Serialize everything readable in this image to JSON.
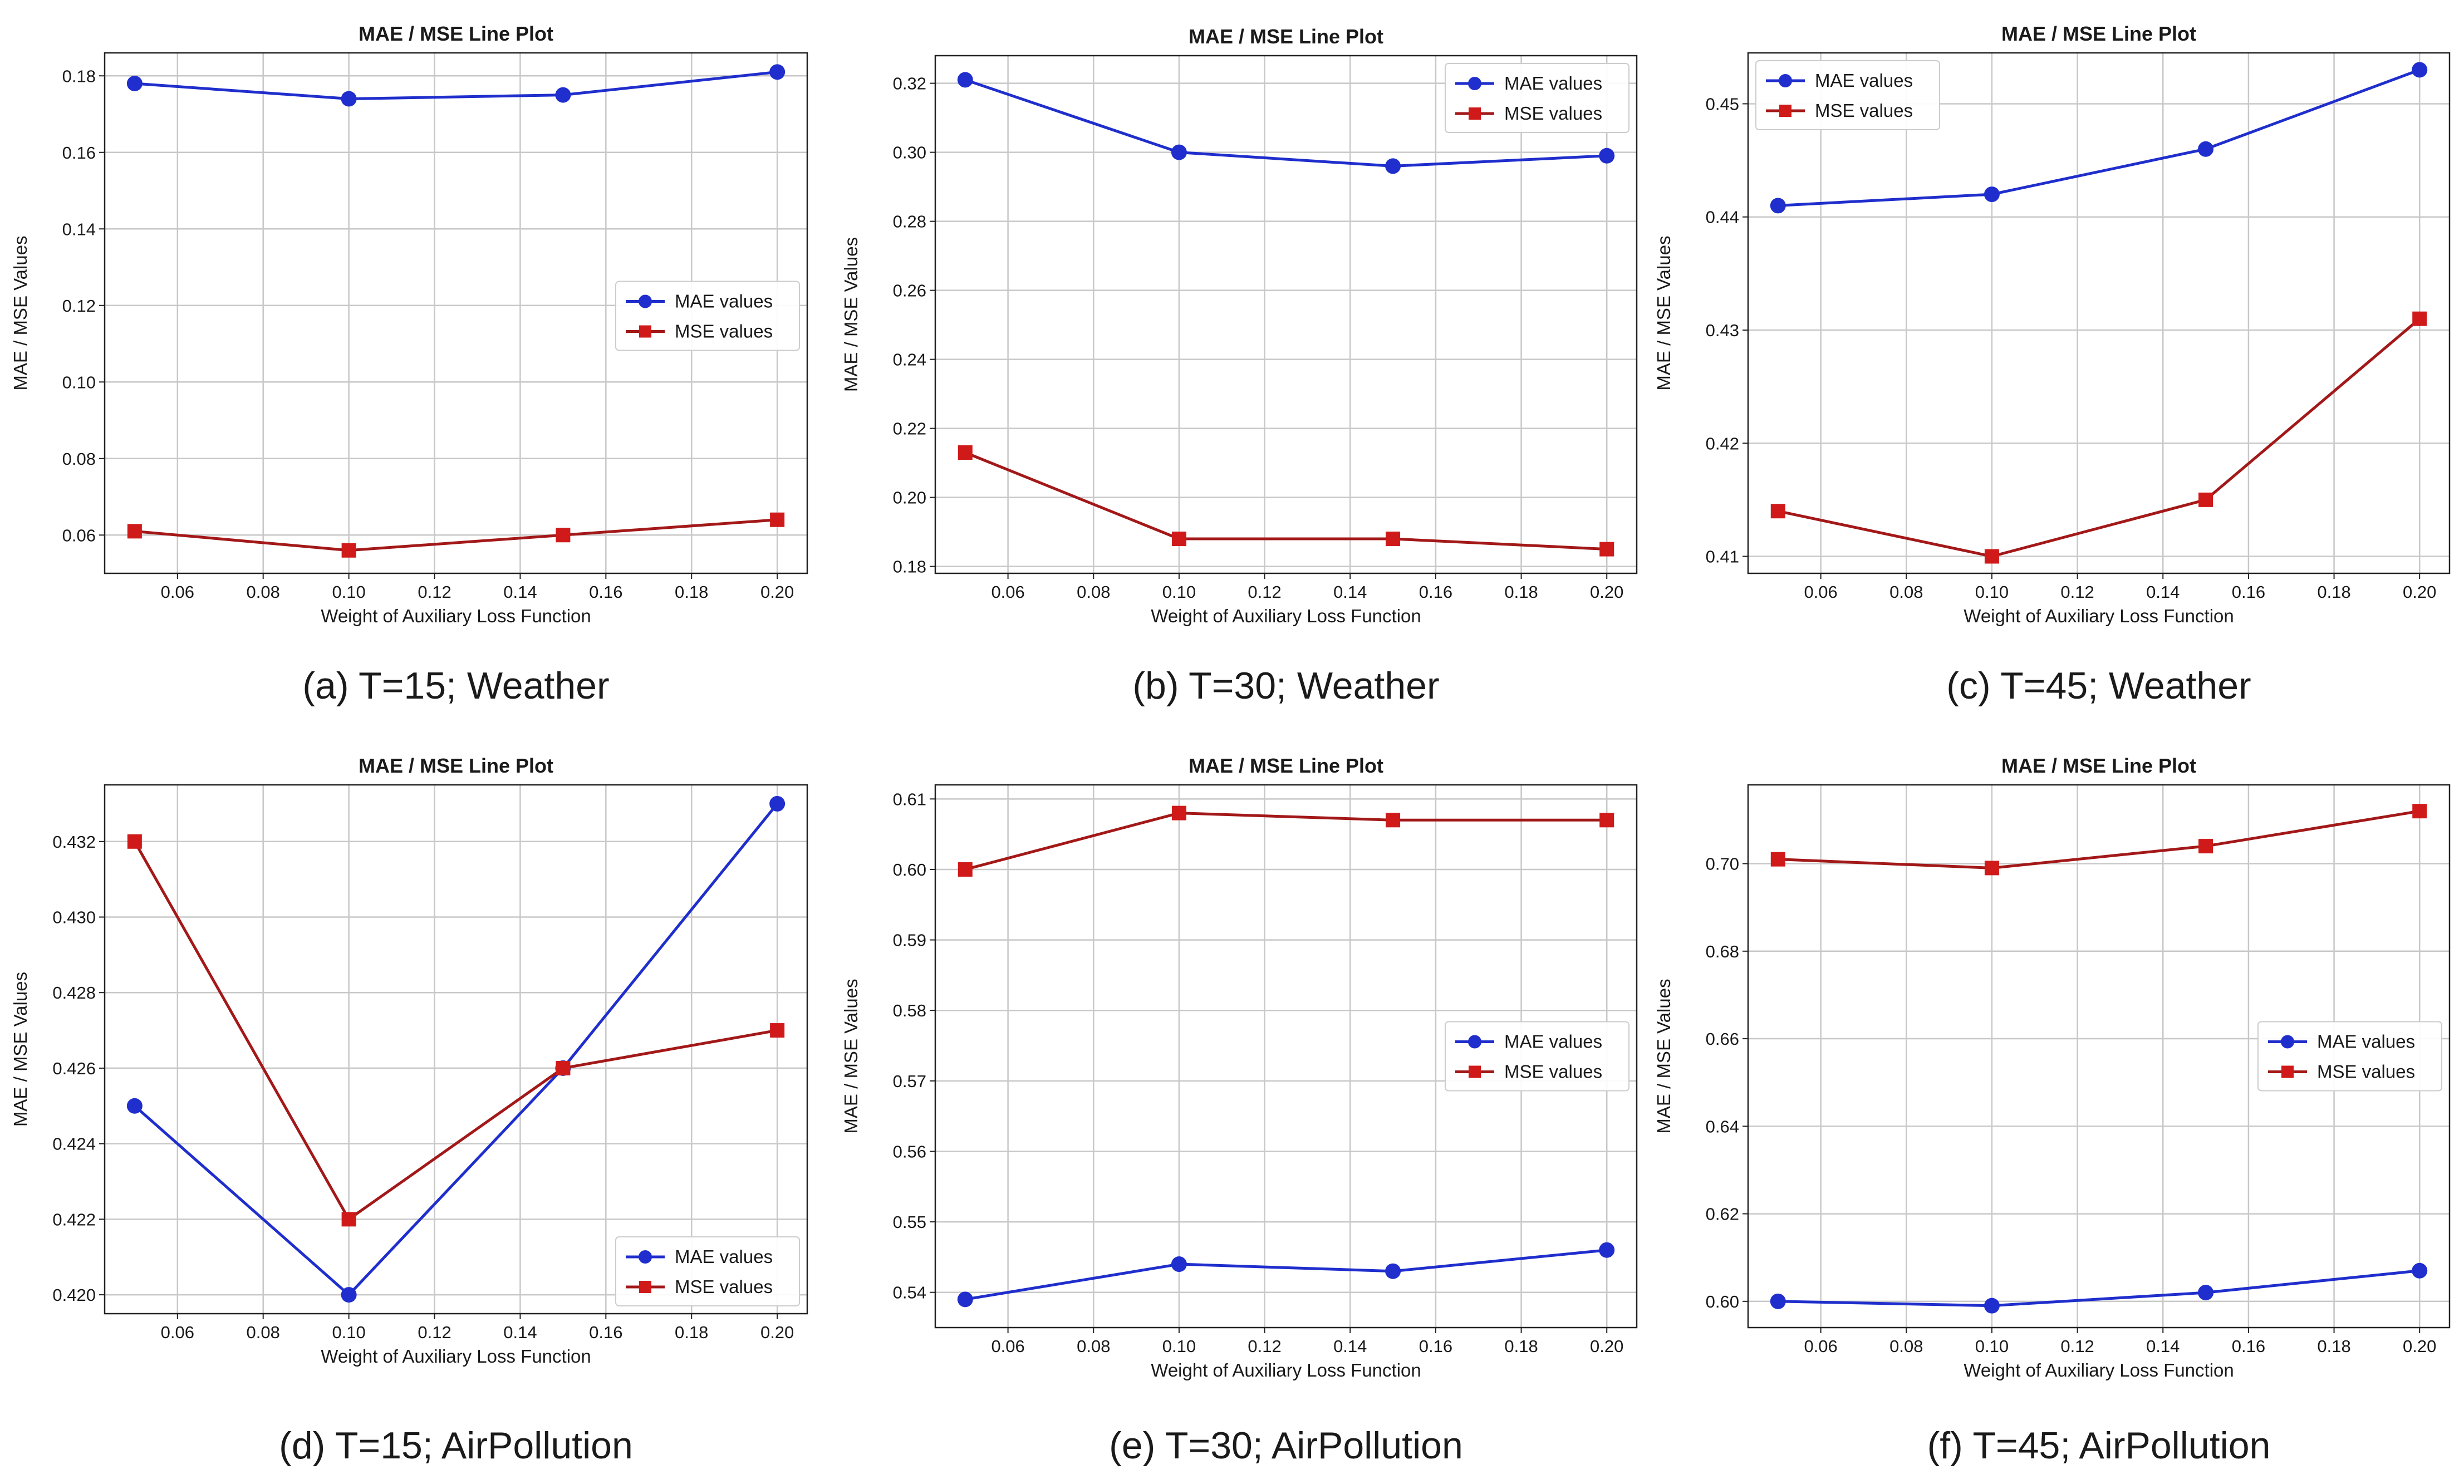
{
  "figure": {
    "colors": {
      "mae": "#1f2ecc",
      "mse": "#d01a1a",
      "mse_line_alt": "#a31818",
      "grid": "#c8c8c8"
    }
  },
  "chart_data": [
    {
      "type": "line",
      "title": "MAE / MSE Line Plot",
      "caption": "(a) T=15; Weather",
      "xlabel": "Weight of Auxiliary Loss Function",
      "ylabel": "MAE / MSE Values",
      "x": [
        0.05,
        0.1,
        0.15,
        0.2
      ],
      "xlim": [
        0.043,
        0.207
      ],
      "xticks": [
        "0.06",
        "0.08",
        "0.10",
        "0.12",
        "0.14",
        "0.16",
        "0.18",
        "0.20"
      ],
      "ylim": [
        0.05,
        0.186
      ],
      "yticks": [
        "0.06",
        "0.08",
        "0.10",
        "0.12",
        "0.14",
        "0.16",
        "0.18"
      ],
      "legend_position": "center-right",
      "series": [
        {
          "name": "MAE values",
          "values": [
            0.178,
            0.174,
            0.175,
            0.181
          ]
        },
        {
          "name": "MSE values",
          "values": [
            0.061,
            0.056,
            0.06,
            0.064
          ]
        }
      ]
    },
    {
      "type": "line",
      "title": "MAE / MSE Line Plot",
      "caption": "(b) T=30; Weather",
      "xlabel": "Weight of Auxiliary Loss Function",
      "ylabel": "MAE / MSE Values",
      "x": [
        0.05,
        0.1,
        0.15,
        0.2
      ],
      "xlim": [
        0.043,
        0.207
      ],
      "xticks": [
        "0.06",
        "0.08",
        "0.10",
        "0.12",
        "0.14",
        "0.16",
        "0.18",
        "0.20"
      ],
      "ylim": [
        0.178,
        0.328
      ],
      "yticks": [
        "0.18",
        "0.20",
        "0.22",
        "0.24",
        "0.26",
        "0.28",
        "0.30",
        "0.32"
      ],
      "legend_position": "top-right",
      "series": [
        {
          "name": "MAE values",
          "values": [
            0.321,
            0.3,
            0.296,
            0.299
          ]
        },
        {
          "name": "MSE values",
          "values": [
            0.213,
            0.188,
            0.188,
            0.185
          ]
        }
      ]
    },
    {
      "type": "line",
      "title": "MAE / MSE Line Plot",
      "caption": "(c) T=45; Weather",
      "xlabel": "Weight of Auxiliary Loss Function",
      "ylabel": "MAE / MSE Values",
      "x": [
        0.05,
        0.1,
        0.15,
        0.2
      ],
      "xlim": [
        0.043,
        0.207
      ],
      "xticks": [
        "0.06",
        "0.08",
        "0.10",
        "0.12",
        "0.14",
        "0.16",
        "0.18",
        "0.20"
      ],
      "ylim": [
        0.4085,
        0.4545
      ],
      "yticks": [
        "0.41",
        "0.42",
        "0.43",
        "0.44",
        "0.45"
      ],
      "legend_position": "top-left",
      "series": [
        {
          "name": "MAE values",
          "values": [
            0.441,
            0.442,
            0.446,
            0.453
          ]
        },
        {
          "name": "MSE values",
          "values": [
            0.414,
            0.41,
            0.415,
            0.431
          ]
        }
      ]
    },
    {
      "type": "line",
      "title": "MAE / MSE Line Plot",
      "caption": "(d) T=15; AirPollution",
      "xlabel": "Weight of Auxiliary Loss Function",
      "ylabel": "MAE / MSE Values",
      "x": [
        0.05,
        0.1,
        0.15,
        0.2
      ],
      "xlim": [
        0.043,
        0.207
      ],
      "xticks": [
        "0.06",
        "0.08",
        "0.10",
        "0.12",
        "0.14",
        "0.16",
        "0.18",
        "0.20"
      ],
      "ylim": [
        0.4195,
        0.4335
      ],
      "yticks": [
        "0.420",
        "0.422",
        "0.424",
        "0.426",
        "0.428",
        "0.430",
        "0.432"
      ],
      "legend_position": "bottom-right",
      "series": [
        {
          "name": "MAE values",
          "values": [
            0.425,
            0.42,
            0.426,
            0.433
          ]
        },
        {
          "name": "MSE values",
          "values": [
            0.432,
            0.422,
            0.426,
            0.427
          ]
        }
      ]
    },
    {
      "type": "line",
      "title": "MAE / MSE Line Plot",
      "caption": "(e) T=30; AirPollution",
      "xlabel": "Weight of Auxiliary Loss Function",
      "ylabel": "MAE / MSE Values",
      "x": [
        0.05,
        0.1,
        0.15,
        0.2
      ],
      "xlim": [
        0.043,
        0.207
      ],
      "xticks": [
        "0.06",
        "0.08",
        "0.10",
        "0.12",
        "0.14",
        "0.16",
        "0.18",
        "0.20"
      ],
      "ylim": [
        0.535,
        0.612
      ],
      "yticks": [
        "0.54",
        "0.55",
        "0.56",
        "0.57",
        "0.58",
        "0.59",
        "0.60",
        "0.61"
      ],
      "legend_position": "center-right",
      "series": [
        {
          "name": "MAE values",
          "values": [
            0.539,
            0.544,
            0.543,
            0.546
          ]
        },
        {
          "name": "MSE values",
          "values": [
            0.6,
            0.608,
            0.607,
            0.607
          ]
        }
      ]
    },
    {
      "type": "line",
      "title": "MAE / MSE Line Plot",
      "caption": "(f) T=45; AirPollution",
      "xlabel": "Weight of Auxiliary Loss Function",
      "ylabel": "MAE / MSE Values",
      "x": [
        0.05,
        0.1,
        0.15,
        0.2
      ],
      "xlim": [
        0.043,
        0.207
      ],
      "xticks": [
        "0.06",
        "0.08",
        "0.10",
        "0.12",
        "0.14",
        "0.16",
        "0.18",
        "0.20"
      ],
      "ylim": [
        0.594,
        0.718
      ],
      "yticks": [
        "0.60",
        "0.62",
        "0.64",
        "0.66",
        "0.68",
        "0.70"
      ],
      "legend_position": "center-right",
      "series": [
        {
          "name": "MAE values",
          "values": [
            0.6,
            0.599,
            0.602,
            0.607
          ]
        },
        {
          "name": "MSE values",
          "values": [
            0.701,
            0.699,
            0.704,
            0.712
          ]
        }
      ]
    }
  ]
}
